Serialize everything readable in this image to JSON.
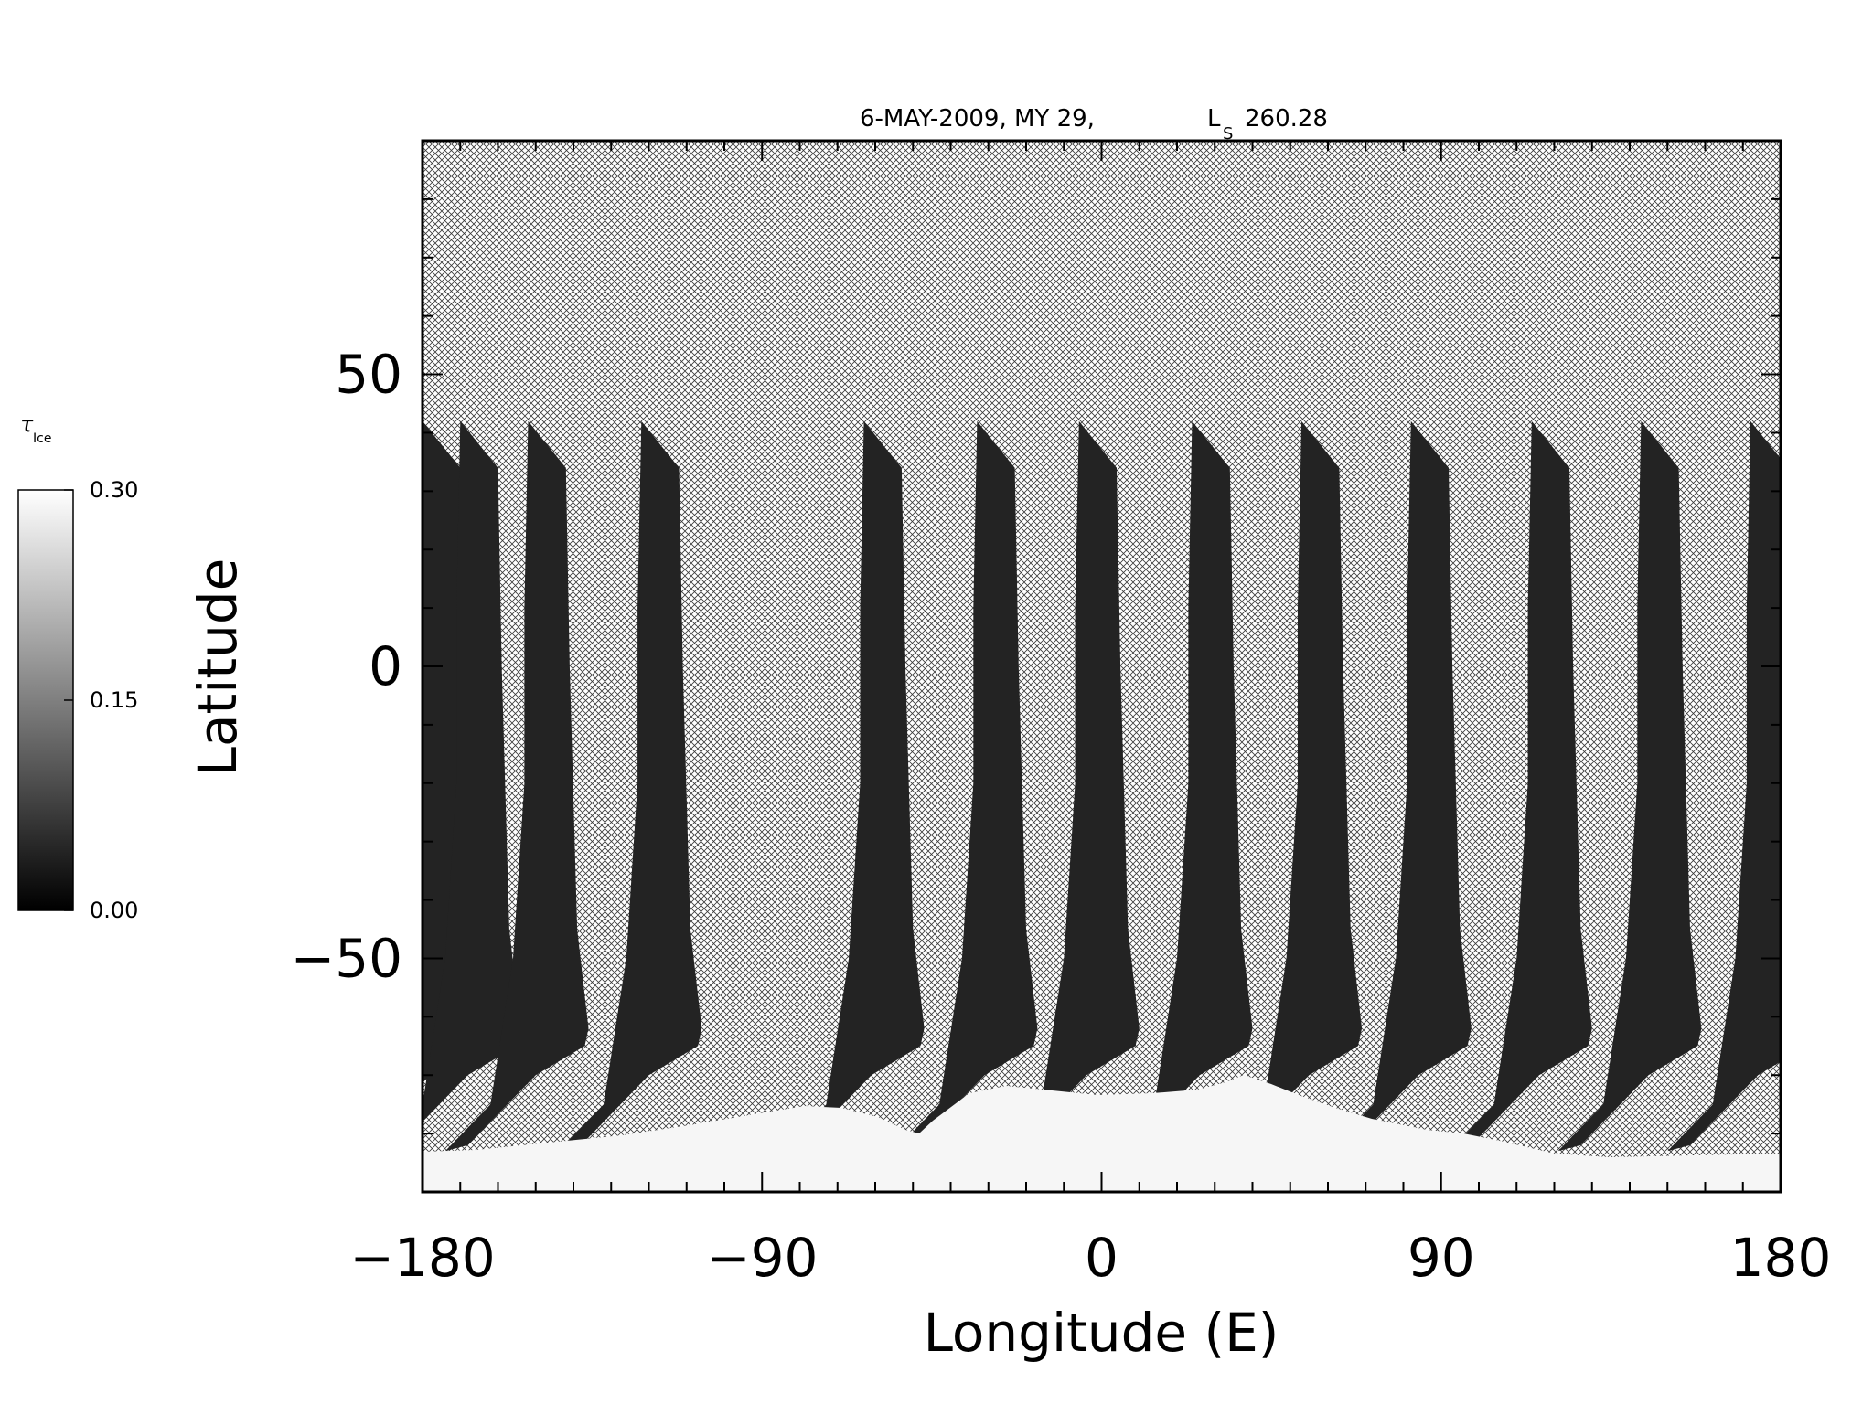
{
  "chart_data": {
    "type": "heatmap",
    "title": "6-MAY-2009, MY 29,",
    "title_ls_symbol": "L",
    "title_ls_subscript": "S",
    "title_ls_value": "260.28",
    "xlabel": "Longitude (E)",
    "ylabel": "Latitude",
    "xlim": [
      -180,
      180
    ],
    "ylim": [
      -90,
      90
    ],
    "xticks": [
      -180,
      -90,
      0,
      90,
      180
    ],
    "xtick_labels": [
      "−180",
      "−90",
      "0",
      "90",
      "180"
    ],
    "yticks": [
      -50,
      0,
      50
    ],
    "ytick_labels": [
      "−50",
      "0",
      "50"
    ],
    "x_minor_step": 10,
    "y_minor_step": 10,
    "colorbar": {
      "label_symbol": "τ",
      "label_subscript": "Ice",
      "min": 0.0,
      "max": 0.3,
      "ticks": [
        0.0,
        0.15,
        0.3
      ],
      "tick_labels": [
        "0.00",
        "0.15",
        "0.30"
      ],
      "color_low": "#000000",
      "color_high": "#ffffff"
    },
    "no_data_pattern": "crosshatch",
    "swath_top_latitude": 42,
    "swath_left_edge_longitudes": [
      -180,
      -170,
      -152,
      -122,
      -63,
      -33,
      -6,
      24,
      53,
      82,
      114,
      143,
      172
    ],
    "south_polar_cap_tau": 0.3,
    "typical_swath_tau": 0.02
  }
}
